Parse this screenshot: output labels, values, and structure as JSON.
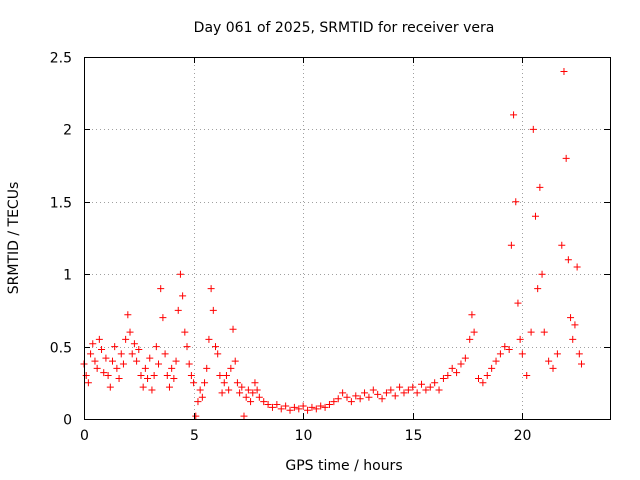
{
  "chart_data": {
    "type": "scatter",
    "title": "Day 061 of 2025, SRMTID for receiver vera",
    "xlabel": "GPS time / hours",
    "ylabel": "SRMTID / TECUs",
    "xlim": [
      0,
      24
    ],
    "ylim": [
      0,
      2.5
    ],
    "x_ticks": [
      0,
      5,
      10,
      15,
      20
    ],
    "x_tick_labels": [
      "0",
      "5",
      "10",
      "15",
      "20"
    ],
    "y_ticks": [
      0,
      0.5,
      1,
      1.5,
      2,
      2.5
    ],
    "y_tick_labels": [
      "0",
      "0.5",
      "1",
      "1.5",
      "2",
      "2.5"
    ],
    "grid": true,
    "marker": "+",
    "color": "#ff0000",
    "series": [
      {
        "name": "SRMTID",
        "points": [
          [
            0.0,
            0.38
          ],
          [
            0.1,
            0.3
          ],
          [
            0.2,
            0.25
          ],
          [
            0.3,
            0.45
          ],
          [
            0.4,
            0.52
          ],
          [
            0.5,
            0.4
          ],
          [
            0.6,
            0.35
          ],
          [
            0.7,
            0.55
          ],
          [
            0.8,
            0.48
          ],
          [
            0.9,
            0.32
          ],
          [
            1.0,
            0.42
          ],
          [
            1.1,
            0.3
          ],
          [
            1.2,
            0.22
          ],
          [
            1.3,
            0.4
          ],
          [
            1.4,
            0.5
          ],
          [
            1.5,
            0.35
          ],
          [
            1.6,
            0.28
          ],
          [
            1.7,
            0.45
          ],
          [
            1.8,
            0.38
          ],
          [
            1.9,
            0.55
          ],
          [
            2.0,
            0.72
          ],
          [
            2.1,
            0.6
          ],
          [
            2.2,
            0.45
          ],
          [
            2.3,
            0.52
          ],
          [
            2.4,
            0.4
          ],
          [
            2.5,
            0.48
          ],
          [
            2.6,
            0.3
          ],
          [
            2.7,
            0.22
          ],
          [
            2.8,
            0.35
          ],
          [
            2.9,
            0.28
          ],
          [
            3.0,
            0.42
          ],
          [
            3.1,
            0.2
          ],
          [
            3.2,
            0.3
          ],
          [
            3.3,
            0.5
          ],
          [
            3.4,
            0.38
          ],
          [
            3.5,
            0.9
          ],
          [
            3.6,
            0.7
          ],
          [
            3.7,
            0.45
          ],
          [
            3.8,
            0.3
          ],
          [
            3.9,
            0.22
          ],
          [
            4.0,
            0.35
          ],
          [
            4.1,
            0.28
          ],
          [
            4.2,
            0.4
          ],
          [
            4.3,
            0.75
          ],
          [
            4.4,
            1.0
          ],
          [
            4.5,
            0.85
          ],
          [
            4.6,
            0.6
          ],
          [
            4.7,
            0.5
          ],
          [
            4.8,
            0.38
          ],
          [
            4.9,
            0.3
          ],
          [
            5.0,
            0.25
          ],
          [
            5.1,
            0.02
          ],
          [
            5.2,
            0.12
          ],
          [
            5.3,
            0.2
          ],
          [
            5.4,
            0.15
          ],
          [
            5.5,
            0.25
          ],
          [
            5.6,
            0.35
          ],
          [
            5.7,
            0.55
          ],
          [
            5.8,
            0.9
          ],
          [
            5.9,
            0.75
          ],
          [
            6.0,
            0.5
          ],
          [
            6.1,
            0.45
          ],
          [
            6.2,
            0.3
          ],
          [
            6.3,
            0.18
          ],
          [
            6.4,
            0.25
          ],
          [
            6.5,
            0.3
          ],
          [
            6.6,
            0.2
          ],
          [
            6.7,
            0.35
          ],
          [
            6.8,
            0.62
          ],
          [
            6.9,
            0.4
          ],
          [
            7.0,
            0.25
          ],
          [
            7.1,
            0.18
          ],
          [
            7.2,
            0.22
          ],
          [
            7.3,
            0.02
          ],
          [
            7.4,
            0.15
          ],
          [
            7.5,
            0.2
          ],
          [
            7.6,
            0.12
          ],
          [
            7.7,
            0.18
          ],
          [
            7.8,
            0.25
          ],
          [
            7.9,
            0.2
          ],
          [
            8.0,
            0.15
          ],
          [
            8.2,
            0.12
          ],
          [
            8.4,
            0.1
          ],
          [
            8.6,
            0.08
          ],
          [
            8.8,
            0.1
          ],
          [
            9.0,
            0.07
          ],
          [
            9.2,
            0.09
          ],
          [
            9.4,
            0.06
          ],
          [
            9.6,
            0.08
          ],
          [
            9.8,
            0.07
          ],
          [
            10.0,
            0.09
          ],
          [
            10.2,
            0.06
          ],
          [
            10.4,
            0.08
          ],
          [
            10.6,
            0.07
          ],
          [
            10.8,
            0.09
          ],
          [
            11.0,
            0.08
          ],
          [
            11.2,
            0.1
          ],
          [
            11.4,
            0.12
          ],
          [
            11.6,
            0.14
          ],
          [
            11.8,
            0.18
          ],
          [
            12.0,
            0.15
          ],
          [
            12.2,
            0.12
          ],
          [
            12.4,
            0.16
          ],
          [
            12.6,
            0.14
          ],
          [
            12.8,
            0.18
          ],
          [
            13.0,
            0.15
          ],
          [
            13.2,
            0.2
          ],
          [
            13.4,
            0.17
          ],
          [
            13.6,
            0.14
          ],
          [
            13.8,
            0.18
          ],
          [
            14.0,
            0.2
          ],
          [
            14.2,
            0.16
          ],
          [
            14.4,
            0.22
          ],
          [
            14.6,
            0.18
          ],
          [
            14.8,
            0.2
          ],
          [
            15.0,
            0.22
          ],
          [
            15.2,
            0.18
          ],
          [
            15.4,
            0.24
          ],
          [
            15.6,
            0.2
          ],
          [
            15.8,
            0.22
          ],
          [
            16.0,
            0.25
          ],
          [
            16.2,
            0.2
          ],
          [
            16.4,
            0.28
          ],
          [
            16.6,
            0.3
          ],
          [
            16.8,
            0.35
          ],
          [
            17.0,
            0.32
          ],
          [
            17.2,
            0.38
          ],
          [
            17.4,
            0.42
          ],
          [
            17.6,
            0.55
          ],
          [
            17.7,
            0.72
          ],
          [
            17.8,
            0.6
          ],
          [
            18.0,
            0.28
          ],
          [
            18.2,
            0.25
          ],
          [
            18.4,
            0.3
          ],
          [
            18.6,
            0.35
          ],
          [
            18.8,
            0.4
          ],
          [
            19.0,
            0.45
          ],
          [
            19.2,
            0.5
          ],
          [
            19.4,
            0.48
          ],
          [
            19.5,
            1.2
          ],
          [
            19.6,
            2.1
          ],
          [
            19.7,
            1.5
          ],
          [
            19.8,
            0.8
          ],
          [
            19.9,
            0.55
          ],
          [
            20.0,
            0.45
          ],
          [
            20.2,
            0.3
          ],
          [
            20.4,
            0.6
          ],
          [
            20.5,
            2.0
          ],
          [
            20.6,
            1.4
          ],
          [
            20.7,
            0.9
          ],
          [
            20.8,
            1.6
          ],
          [
            20.9,
            1.0
          ],
          [
            21.0,
            0.6
          ],
          [
            21.2,
            0.4
          ],
          [
            21.4,
            0.35
          ],
          [
            21.6,
            0.45
          ],
          [
            21.8,
            1.2
          ],
          [
            21.9,
            2.4
          ],
          [
            22.0,
            1.8
          ],
          [
            22.1,
            1.1
          ],
          [
            22.2,
            0.7
          ],
          [
            22.3,
            0.55
          ],
          [
            22.4,
            0.65
          ],
          [
            22.5,
            1.05
          ],
          [
            22.6,
            0.45
          ],
          [
            22.7,
            0.38
          ]
        ]
      }
    ]
  }
}
